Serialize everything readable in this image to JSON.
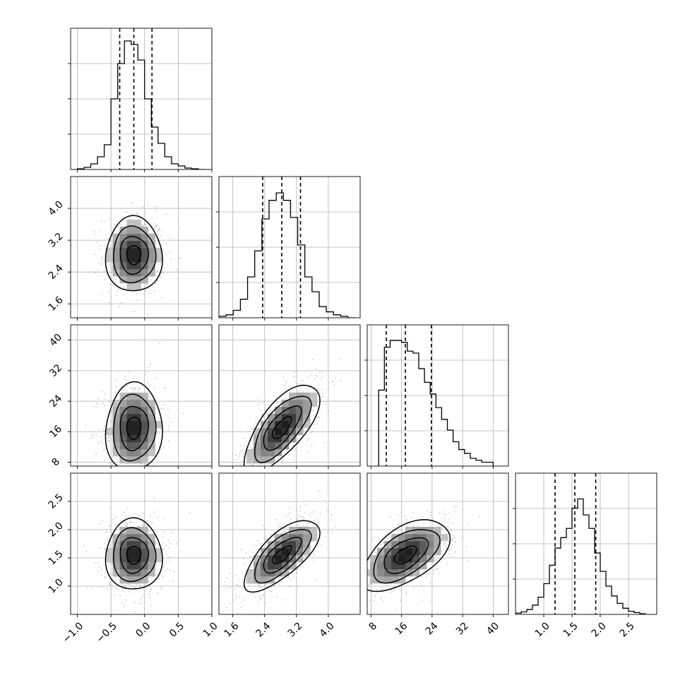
{
  "chart_data": {
    "type": "corner",
    "parameters": [
      {
        "id": "p0",
        "label": "",
        "range": [
          -1.1,
          1.0
        ],
        "ticks": [
          -1.0,
          -0.5,
          0.0,
          0.5,
          1.0
        ],
        "tick_labels": [
          "−1.0",
          "−0.5",
          "0.0",
          "0.5",
          "1.0"
        ],
        "quantiles": [
          -0.37,
          -0.16,
          0.11
        ],
        "median": -0.16,
        "sigma": 0.2,
        "histogram": {
          "bin_edges": [
            -1.0,
            -0.9,
            -0.8,
            -0.7,
            -0.6,
            -0.5,
            -0.4,
            -0.3,
            -0.2,
            -0.1,
            0.0,
            0.1,
            0.2,
            0.3,
            0.4,
            0.5,
            0.6,
            0.7,
            0.8,
            0.9
          ],
          "counts": [
            1,
            3,
            8,
            18,
            35,
            100,
            150,
            182,
            177,
            155,
            100,
            60,
            37,
            18,
            8,
            5,
            2,
            1,
            0
          ],
          "ymax": 200
        }
      },
      {
        "id": "p1",
        "label": "",
        "range": [
          1.25,
          4.8
        ],
        "ticks": [
          1.6,
          2.4,
          3.2,
          4.0
        ],
        "tick_labels": [
          "1.6",
          "2.4",
          "3.2",
          "4.0"
        ],
        "quantiles": [
          2.35,
          2.83,
          3.3
        ],
        "median": 2.83,
        "sigma": 0.45,
        "histogram": {
          "bin_edges": [
            1.25,
            1.43,
            1.61,
            1.79,
            1.97,
            2.15,
            2.33,
            2.51,
            2.69,
            2.87,
            3.05,
            3.23,
            3.41,
            3.59,
            3.77,
            3.95,
            4.13,
            4.31,
            4.49,
            4.67
          ],
          "counts": [
            2,
            4,
            10,
            25,
            55,
            90,
            133,
            158,
            168,
            158,
            135,
            98,
            55,
            35,
            15,
            8,
            4,
            2,
            0
          ],
          "ymax": 190
        }
      },
      {
        "id": "p2",
        "label": "",
        "range": [
          7.0,
          44.0
        ],
        "ticks": [
          8,
          16,
          24,
          32,
          40
        ],
        "tick_labels": [
          "8",
          "16",
          "24",
          "32",
          "40"
        ],
        "quantiles": [
          12.0,
          17.0,
          23.8
        ],
        "median": 17.0,
        "sigma": 5.5,
        "histogram": {
          "bin_edges": [
            10.0,
            11.5,
            13.0,
            14.5,
            16.0,
            17.5,
            19.0,
            20.5,
            22.0,
            23.5,
            25.0,
            26.5,
            28.0,
            29.5,
            31.0,
            32.5,
            34.0,
            35.5,
            37.0,
            38.5,
            40.0
          ],
          "counts": [
            78,
            122,
            129,
            129,
            127,
            118,
            116,
            100,
            86,
            74,
            60,
            48,
            37,
            25,
            17,
            13,
            8,
            6,
            4,
            4
          ],
          "ymax": 145
        }
      },
      {
        "id": "p3",
        "label": "",
        "range": [
          0.5,
          3.0
        ],
        "ticks": [
          1.0,
          1.5,
          2.0,
          2.5
        ],
        "tick_labels": [
          "1.0",
          "1.5",
          "2.0",
          "2.5"
        ],
        "quantiles": [
          1.2,
          1.55,
          1.92
        ],
        "median": 1.55,
        "sigma": 0.3,
        "histogram": {
          "bin_edges": [
            0.5,
            0.6,
            0.7,
            0.8,
            0.9,
            1.0,
            1.1,
            1.2,
            1.3,
            1.4,
            1.5,
            1.6,
            1.7,
            1.8,
            1.9,
            2.0,
            2.1,
            2.2,
            2.3,
            2.4,
            2.5,
            2.6,
            2.7,
            2.8
          ],
          "counts": [
            2,
            4,
            8,
            15,
            28,
            50,
            80,
            108,
            125,
            140,
            173,
            188,
            162,
            140,
            100,
            70,
            46,
            30,
            18,
            10,
            5,
            3,
            1
          ],
          "ymax": 230
        }
      }
    ],
    "correlations": [
      {
        "pair": [
          0,
          1
        ],
        "rho": 0.0
      },
      {
        "pair": [
          0,
          2
        ],
        "rho": 0.05
      },
      {
        "pair": [
          1,
          2
        ],
        "rho": 0.7
      },
      {
        "pair": [
          0,
          3
        ],
        "rho": 0.0
      },
      {
        "pair": [
          1,
          3
        ],
        "rho": 0.7
      },
      {
        "pair": [
          2,
          3
        ],
        "rho": 0.55
      }
    ],
    "contour_levels_sigma": [
      0.5,
      1.0,
      1.5,
      2.0
    ],
    "grid": true,
    "quantile_lines": "dashed"
  }
}
